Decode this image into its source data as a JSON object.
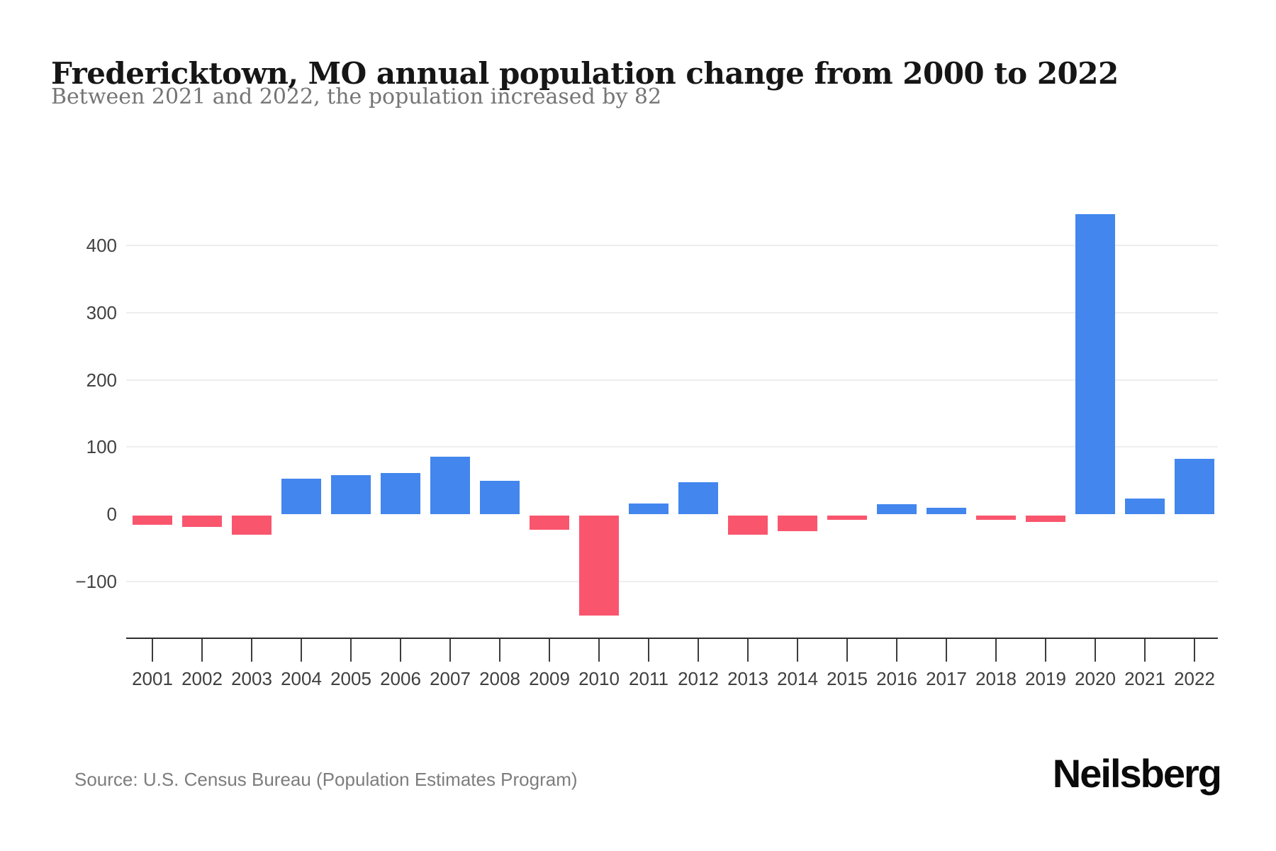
{
  "header": {
    "title": "Fredericktown, MO annual population change from 2000 to 2022",
    "subtitle": "Between 2021 and 2022, the population increased by 82"
  },
  "footer": {
    "source": "Source: U.S. Census Bureau (Population Estimates Program)",
    "logo": "Neilsberg"
  },
  "chart_data": {
    "type": "bar",
    "title": "Fredericktown, MO annual population change from 2000 to 2022",
    "subtitle": "Between 2021 and 2022, the population increased by 82",
    "xlabel": "",
    "ylabel": "",
    "categories": [
      "2001",
      "2002",
      "2003",
      "2004",
      "2005",
      "2006",
      "2007",
      "2008",
      "2009",
      "2010",
      "2011",
      "2012",
      "2013",
      "2014",
      "2015",
      "2016",
      "2017",
      "2018",
      "2019",
      "2020",
      "2021",
      "2022"
    ],
    "values": [
      -14,
      -17,
      -28,
      53,
      58,
      61,
      86,
      50,
      -21,
      -149,
      16,
      47,
      -28,
      -23,
      -6,
      15,
      9,
      -6,
      -9,
      446,
      23,
      82
    ],
    "ylim": [
      -160,
      470
    ],
    "yticks": [
      {
        "value": 400,
        "label": "400"
      },
      {
        "value": 300,
        "label": "300"
      },
      {
        "value": 200,
        "label": "200"
      },
      {
        "value": 100,
        "label": "100"
      },
      {
        "value": 0,
        "label": "0"
      },
      {
        "value": -100,
        "label": "−100"
      }
    ],
    "grid": "horizontal gridlines at labeled ticks except 0; no vertical grid; no legend",
    "legend_position": "none",
    "colors": {
      "positive_bar": "#4286EE",
      "negative_bar": "#F9566E",
      "gridline": "#EEEEEE",
      "axis": "#2E2E2E",
      "tick_label": "#424242"
    }
  }
}
